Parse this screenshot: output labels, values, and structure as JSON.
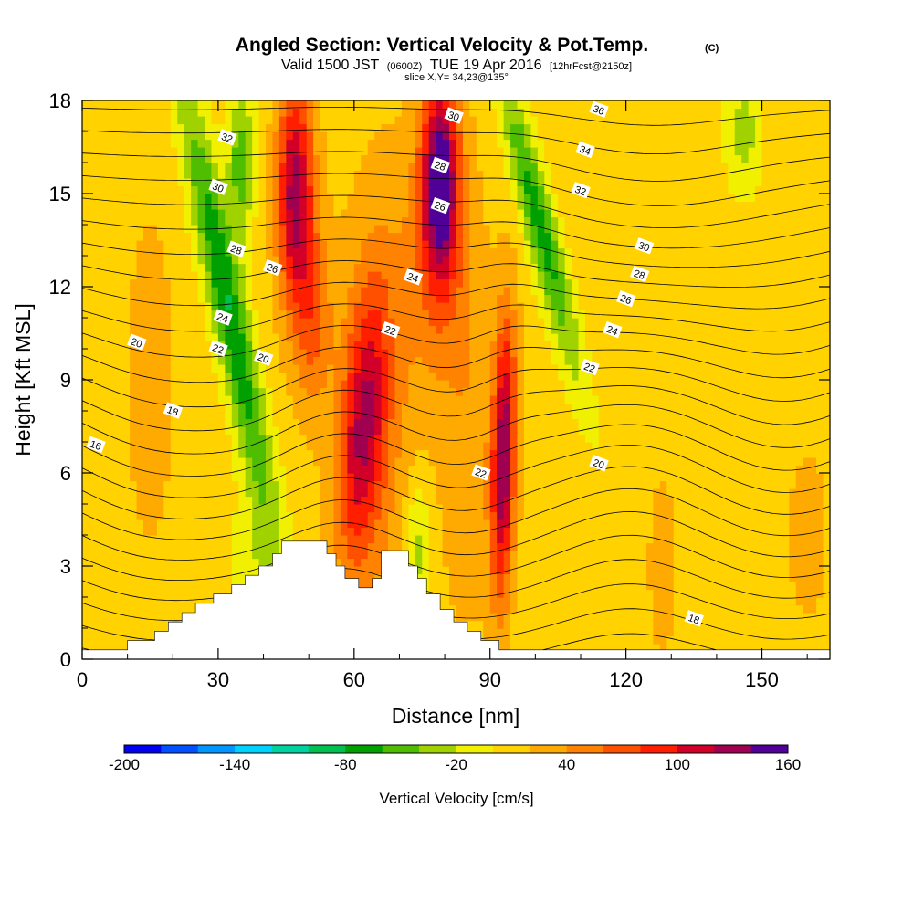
{
  "title": {
    "main": "Angled Section: Vertical Velocity & Pot.Temp.",
    "main_unit": "(C)",
    "valid_prefix": "Valid 1500 JST",
    "valid_zulu": "(0600Z)",
    "valid_date": "TUE 19 Apr 2016",
    "forecast": "[12hrFcst@2150z]",
    "slice": "slice X,Y= 34,23@135°"
  },
  "chart_data": {
    "type": "heatmap",
    "xlabel": "Distance [nm]",
    "ylabel": "Height [Kft MSL]",
    "xlim": [
      0,
      165
    ],
    "ylim": [
      0,
      18
    ],
    "x_ticks": [
      "0",
      "30",
      "60",
      "90",
      "120",
      "150"
    ],
    "y_ticks": [
      "0",
      "3",
      "6",
      "9",
      "12",
      "15",
      "18"
    ],
    "x_tick_values": [
      0,
      30,
      60,
      90,
      120,
      150
    ],
    "y_tick_values": [
      0,
      3,
      6,
      9,
      12,
      15,
      18
    ],
    "colorbar": {
      "label": "Vertical Velocity [cm/s]",
      "tick_labels": [
        "-200",
        "-140",
        "-80",
        "-20",
        "40",
        "100",
        "160"
      ],
      "tick_values": [
        -200,
        -140,
        -80,
        -20,
        40,
        100,
        160
      ],
      "min": -200,
      "max": 160,
      "step": 20,
      "colors": [
        "#0000f0",
        "#0050ff",
        "#0096ff",
        "#00d2ff",
        "#00d2a0",
        "#00c050",
        "#00a000",
        "#50be00",
        "#a0d200",
        "#f0f000",
        "#ffd200",
        "#ffaa00",
        "#ff8200",
        "#ff5000",
        "#ff1e00",
        "#d20028",
        "#a00050",
        "#500096"
      ]
    },
    "terrain_top_kft": [
      [
        0,
        0.3
      ],
      [
        10,
        0.3
      ],
      [
        10,
        0.6
      ],
      [
        16,
        0.6
      ],
      [
        16,
        0.9
      ],
      [
        19,
        0.9
      ],
      [
        19,
        1.2
      ],
      [
        22,
        1.2
      ],
      [
        22,
        1.5
      ],
      [
        25,
        1.5
      ],
      [
        25,
        1.8
      ],
      [
        29,
        1.8
      ],
      [
        29,
        2.1
      ],
      [
        33,
        2.1
      ],
      [
        33,
        2.4
      ],
      [
        36,
        2.4
      ],
      [
        36,
        2.7
      ],
      [
        39,
        2.7
      ],
      [
        39,
        3.0
      ],
      [
        42,
        3.0
      ],
      [
        42,
        3.4
      ],
      [
        44,
        3.4
      ],
      [
        44,
        3.8
      ],
      [
        54,
        3.8
      ],
      [
        54,
        3.4
      ],
      [
        56,
        3.4
      ],
      [
        56,
        3.0
      ],
      [
        58,
        3.0
      ],
      [
        58,
        2.6
      ],
      [
        61,
        2.6
      ],
      [
        61,
        2.3
      ],
      [
        64,
        2.3
      ],
      [
        64,
        2.6
      ],
      [
        66,
        2.6
      ],
      [
        66,
        3.5
      ],
      [
        72,
        3.5
      ],
      [
        72,
        3.0
      ],
      [
        74,
        3.0
      ],
      [
        74,
        2.6
      ],
      [
        76,
        2.6
      ],
      [
        76,
        2.1
      ],
      [
        79,
        2.1
      ],
      [
        79,
        1.6
      ],
      [
        82,
        1.6
      ],
      [
        82,
        1.2
      ],
      [
        85,
        1.2
      ],
      [
        85,
        0.9
      ],
      [
        88,
        0.9
      ],
      [
        88,
        0.6
      ],
      [
        92,
        0.6
      ],
      [
        92,
        0.3
      ],
      [
        165,
        0.3
      ]
    ],
    "vertical_velocity_features": [
      {
        "x": 32,
        "y": 11.5,
        "sx": 4,
        "sy": 7,
        "w": -90,
        "tilt": -0.45
      },
      {
        "x": 35,
        "y": 16,
        "sx": 3,
        "sy": 2.5,
        "w": -60,
        "tilt": 0
      },
      {
        "x": 47,
        "y": 15,
        "sx": 4,
        "sy": 3.8,
        "w": 120,
        "tilt": 0
      },
      {
        "x": 51,
        "y": 11,
        "sx": 4,
        "sy": 3,
        "w": 50,
        "tilt": 0
      },
      {
        "x": 62,
        "y": 7.5,
        "sx": 5,
        "sy": 4.5,
        "w": 95,
        "tilt": 0.15
      },
      {
        "x": 66,
        "y": 8,
        "sx": 10,
        "sy": 8,
        "w": 30,
        "tilt": 0
      },
      {
        "x": 79,
        "y": 15.5,
        "sx": 4,
        "sy": 3.2,
        "w": 140,
        "tilt": 0
      },
      {
        "x": 78,
        "y": 13,
        "sx": 7,
        "sy": 4,
        "w": 35,
        "tilt": 0
      },
      {
        "x": 93,
        "y": 6.5,
        "sx": 2.6,
        "sy": 4.5,
        "w": 130,
        "tilt": 0.05
      },
      {
        "x": 85,
        "y": 8,
        "sx": 6,
        "sy": 7,
        "w": 25,
        "tilt": 0
      },
      {
        "x": 101,
        "y": 14,
        "sx": 3.5,
        "sy": 5,
        "w": -80,
        "tilt": -0.55
      },
      {
        "x": 146,
        "y": 17,
        "sx": 4,
        "sy": 2,
        "w": -40,
        "tilt": 0
      },
      {
        "x": 38,
        "y": 3,
        "sx": 5,
        "sy": 3,
        "w": -25,
        "tilt": 0
      },
      {
        "x": 74,
        "y": 3.5,
        "sx": 3,
        "sy": 2.5,
        "w": -45,
        "tilt": 0
      },
      {
        "x": 128,
        "y": 3,
        "sx": 3,
        "sy": 3,
        "w": 25,
        "tilt": 0
      },
      {
        "x": 15,
        "y": 9,
        "sx": 6,
        "sy": 6,
        "w": 20,
        "tilt": 0
      },
      {
        "x": 160,
        "y": 4,
        "sx": 5,
        "sy": 3,
        "w": 20,
        "tilt": 0
      }
    ],
    "contour_levels_C": [
      12,
      13,
      14,
      15,
      16,
      17,
      18,
      19,
      20,
      21,
      22,
      23,
      24,
      25,
      26,
      27,
      28,
      29,
      30,
      31,
      32,
      33,
      34,
      35,
      36,
      37
    ],
    "contour_labels": [
      {
        "text": "32",
        "x": 32,
        "y": 16.8
      },
      {
        "text": "30",
        "x": 30,
        "y": 15.2
      },
      {
        "text": "28",
        "x": 34,
        "y": 13.2
      },
      {
        "text": "26",
        "x": 42,
        "y": 12.6
      },
      {
        "text": "24",
        "x": 31,
        "y": 11.0
      },
      {
        "text": "22",
        "x": 30,
        "y": 10.0
      },
      {
        "text": "20",
        "x": 12,
        "y": 10.2
      },
      {
        "text": "20",
        "x": 40,
        "y": 9.7
      },
      {
        "text": "18",
        "x": 20,
        "y": 8.0
      },
      {
        "text": "16",
        "x": 3,
        "y": 6.9
      },
      {
        "text": "30",
        "x": 82,
        "y": 17.5
      },
      {
        "text": "28",
        "x": 79,
        "y": 15.9
      },
      {
        "text": "26",
        "x": 79,
        "y": 14.6
      },
      {
        "text": "24",
        "x": 73,
        "y": 12.3
      },
      {
        "text": "22",
        "x": 68,
        "y": 10.6
      },
      {
        "text": "22",
        "x": 88,
        "y": 6.0
      },
      {
        "text": "36",
        "x": 114,
        "y": 17.7
      },
      {
        "text": "34",
        "x": 111,
        "y": 16.4
      },
      {
        "text": "32",
        "x": 110,
        "y": 15.1
      },
      {
        "text": "30",
        "x": 124,
        "y": 13.3
      },
      {
        "text": "28",
        "x": 123,
        "y": 12.4
      },
      {
        "text": "26",
        "x": 120,
        "y": 11.6
      },
      {
        "text": "24",
        "x": 117,
        "y": 10.6
      },
      {
        "text": "22",
        "x": 112,
        "y": 9.4
      },
      {
        "text": "20",
        "x": 114,
        "y": 6.3
      },
      {
        "text": "18",
        "x": 135,
        "y": 1.3
      }
    ]
  }
}
